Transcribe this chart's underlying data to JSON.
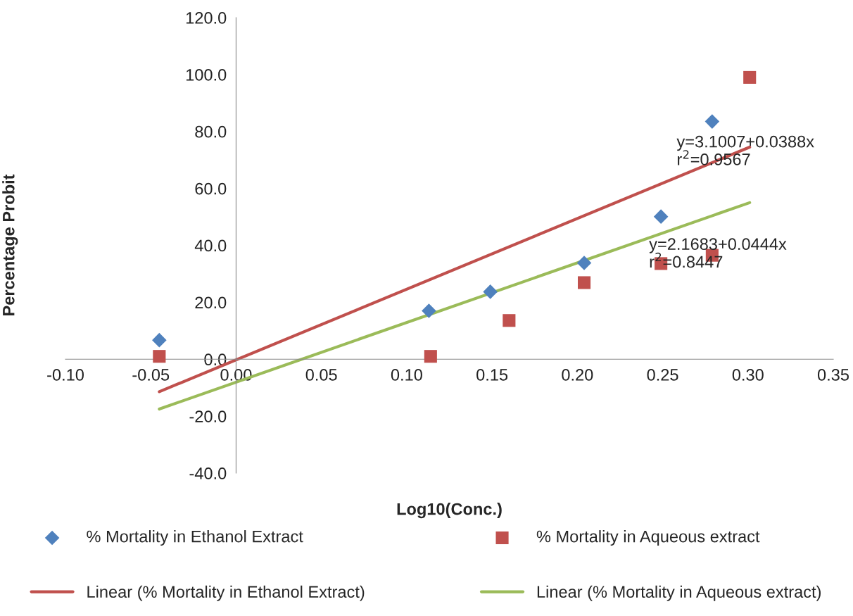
{
  "chart_data": {
    "type": "scatter",
    "xlabel": "Log10(Conc.)",
    "ylabel": "Percentage Probit",
    "xlim": [
      -0.1,
      0.35
    ],
    "xticks": [
      {
        "value": -0.1,
        "label": "-0.10"
      },
      {
        "value": -0.05,
        "label": "-0.05"
      },
      {
        "value": 0.0,
        "label": "0.00"
      },
      {
        "value": 0.05,
        "label": "0.05"
      },
      {
        "value": 0.1,
        "label": "0.10"
      },
      {
        "value": 0.15,
        "label": "0.15"
      },
      {
        "value": 0.2,
        "label": "0.20"
      },
      {
        "value": 0.25,
        "label": "0.25"
      },
      {
        "value": 0.3,
        "label": "0.30"
      },
      {
        "value": 0.35,
        "label": "0.35"
      }
    ],
    "ylim": [
      -40,
      120
    ],
    "yticks": [
      {
        "value": -40,
        "label": "-40.0"
      },
      {
        "value": -20,
        "label": "-20.0"
      },
      {
        "value": 0,
        "label": "0.0"
      },
      {
        "value": 20,
        "label": "20.0"
      },
      {
        "value": 40,
        "label": "40.0"
      },
      {
        "value": 60,
        "label": "60.0"
      },
      {
        "value": 80,
        "label": "80.0"
      },
      {
        "value": 100,
        "label": "100.0"
      },
      {
        "value": 120,
        "label": "120.0"
      }
    ],
    "grid": false,
    "legend": "bottom",
    "series": [
      {
        "name": "% Mortality in Ethanol Extract",
        "marker": "diamond",
        "color": "#4f81bd",
        "x": [
          -0.045,
          0.113,
          0.149,
          0.204,
          0.249,
          0.279
        ],
        "values": [
          6.7,
          17.0,
          23.7,
          33.8,
          50.1,
          83.5
        ]
      },
      {
        "name": "% Mortality in Aqueous extract",
        "marker": "square",
        "color": "#c0504d",
        "x": [
          -0.045,
          0.114,
          0.16,
          0.204,
          0.249,
          0.279,
          0.301
        ],
        "values": [
          1.0,
          1.0,
          13.6,
          26.9,
          33.6,
          36.5,
          99.0
        ]
      },
      {
        "name": "Linear (% Mortality in Ethanol Extract)",
        "type": "line",
        "marker": "none",
        "line_style": "solid",
        "color": "#c0504d",
        "x": [
          -0.045,
          0.301
        ],
        "values": [
          -11.4,
          74.5
        ]
      },
      {
        "name": "Linear (% Mortality in Aqueous extract)",
        "type": "line",
        "marker": "none",
        "line_style": "solid",
        "color": "#9bbb59",
        "x": [
          -0.045,
          0.301
        ],
        "values": [
          -17.5,
          55.0
        ]
      }
    ],
    "annotations": [
      "y=3.1007+0.0388x\nr$^{2}$=0.9567",
      "y=2.1683+0.0444x\nr$^{2}$=0.8447"
    ]
  }
}
